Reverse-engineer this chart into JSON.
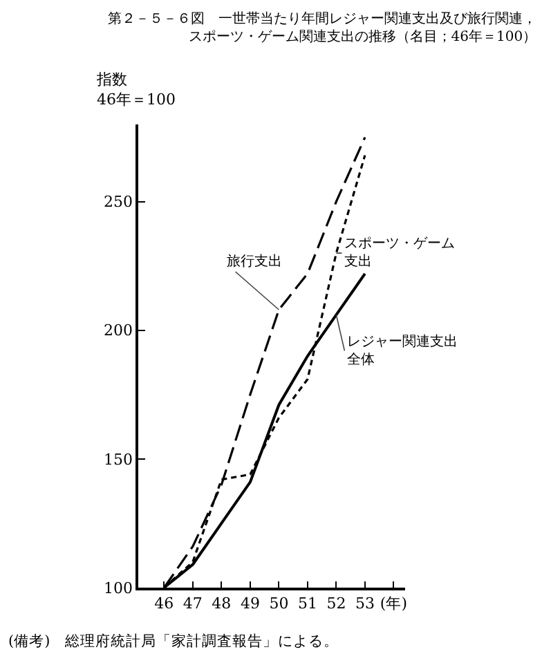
{
  "chart_data": {
    "type": "line",
    "title": "第２－５－６図　一世帯当たり年間レジャー関連支出及び旅行関連，スポーツ・ゲーム関連支出の推移（名目；46年＝100）",
    "ylabel": "指数46年＝100",
    "x": [
      46,
      47,
      48,
      49,
      50,
      51,
      52,
      53
    ],
    "xlim": [
      45.1,
      54.4
    ],
    "xticks": [
      46,
      47,
      48,
      49,
      50,
      51,
      52,
      53,
      {
        "value": 54,
        "label": "(年)"
      }
    ],
    "ylim": [
      100,
      280
    ],
    "yticks": [
      100,
      150,
      200,
      250
    ],
    "series": [
      {
        "name": "旅行支出",
        "color": "#000000",
        "line_style": "dashed",
        "values": [
          100,
          116,
          140,
          175,
          208,
          222,
          250,
          275
        ]
      },
      {
        "name": "スポーツ・ゲーム支出",
        "color": "#000000",
        "line_style": "dotted",
        "values": [
          100,
          110,
          142,
          144,
          166,
          181,
          230,
          268
        ]
      },
      {
        "name": "レジャー関連支出全体",
        "color": "#000000",
        "line_style": "solid",
        "values": [
          100,
          109,
          125,
          141,
          171,
          190,
          206,
          222
        ]
      }
    ],
    "grid": false,
    "legend": false,
    "marker": "none",
    "annotations": [
      "(備考)　総理府統計局「家計調査報告」による。"
    ]
  }
}
